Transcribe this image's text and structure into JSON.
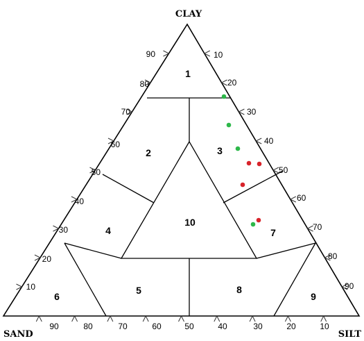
{
  "corners": {
    "top": "CLAY",
    "left": "SAND",
    "right": "SILT"
  },
  "left_ticks": [
    "90",
    "80",
    "70",
    "60",
    "50",
    "40",
    "30",
    "20",
    "10"
  ],
  "right_ticks": [
    "10",
    "20",
    "30",
    "40",
    "50",
    "60",
    "70",
    "80",
    "90"
  ],
  "bottom_ticks": [
    "90",
    "80",
    "70",
    "60",
    "50",
    "40",
    "30",
    "20",
    "10"
  ],
  "zones": [
    "1",
    "2",
    "3",
    "4",
    "5",
    "6",
    "7",
    "8",
    "9",
    "10"
  ],
  "colors": {
    "green": "#2db84a",
    "red": "#d8232a"
  },
  "samples": [
    {
      "color": "green"
    },
    {
      "color": "green"
    },
    {
      "color": "green"
    },
    {
      "color": "red"
    },
    {
      "color": "red"
    },
    {
      "color": "red"
    },
    {
      "color": "red"
    },
    {
      "color": "green"
    }
  ]
}
